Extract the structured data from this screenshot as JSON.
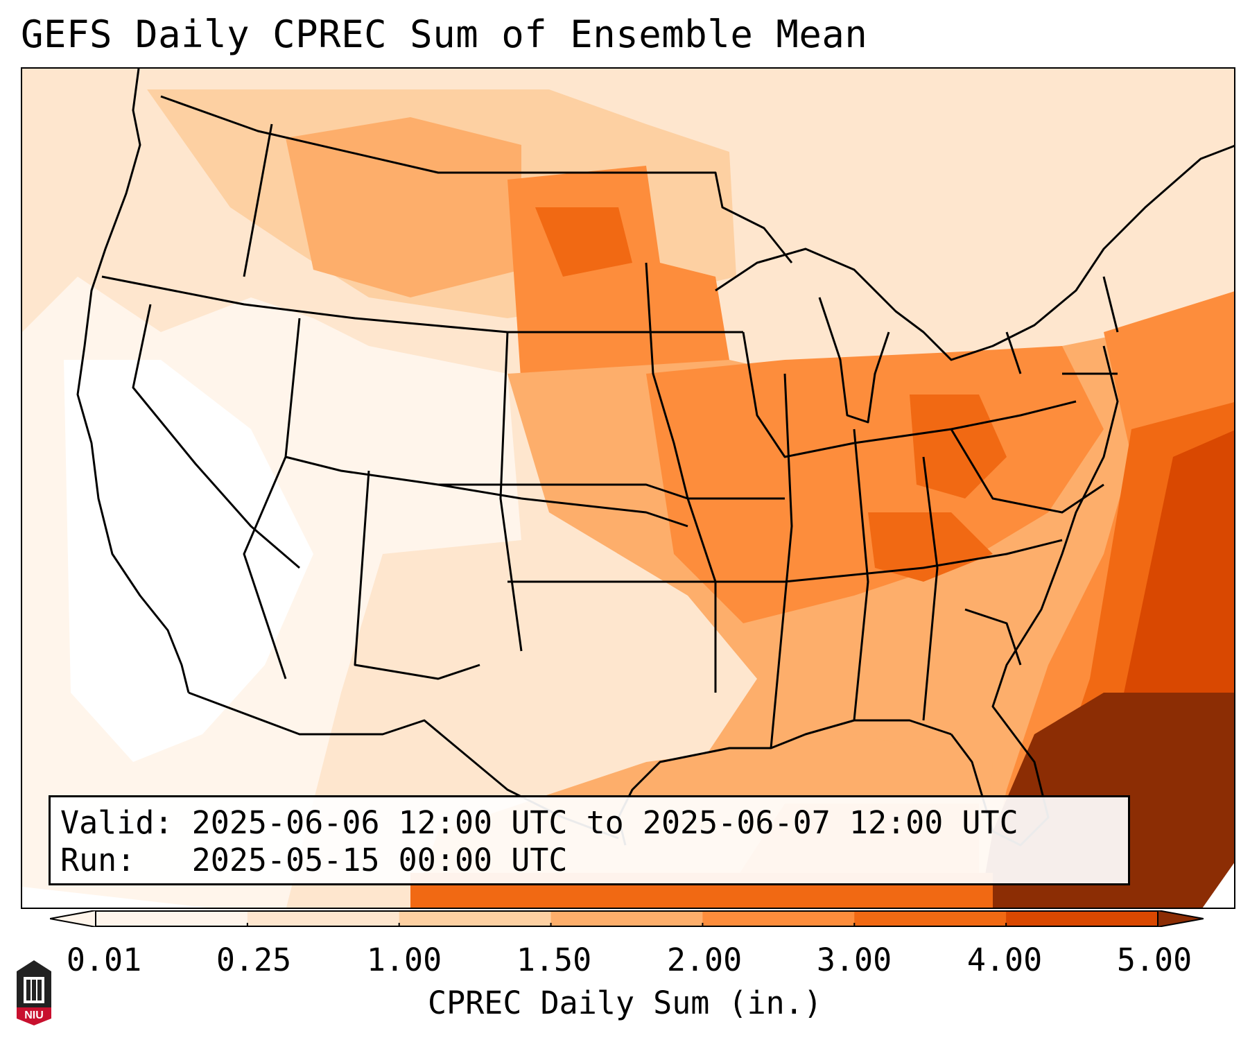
{
  "title": "GEFS Daily CPREC Sum of Ensemble Mean",
  "info": {
    "valid_line": "Valid: 2025-06-06 12:00 UTC to 2025-06-07 12:00 UTC",
    "run_line": "Run:   2025-05-15 00:00 UTC"
  },
  "colorbar": {
    "label": "CPREC Daily Sum (in.)",
    "ticks": [
      "0.01",
      "0.25",
      "1.00",
      "1.50",
      "2.00",
      "3.00",
      "4.00",
      "5.00"
    ],
    "colors": [
      "#fff5eb",
      "#fee6ce",
      "#fdd0a2",
      "#fdae6b",
      "#fd8d3c",
      "#f16913",
      "#d94801",
      "#8c2d04"
    ],
    "extend": "both"
  },
  "logo": {
    "text": "NIU",
    "color": "#c8102e"
  },
  "map": {
    "region": "Continental United States",
    "field": "Convective precipitation daily sum (in.)",
    "heavy_areas": [
      "Southeast US / Florida",
      "Western Atlantic",
      "Ohio Valley",
      "Northern Plains"
    ],
    "light_areas": [
      "Southwest US",
      "Great Basin",
      "Rocky Mountains"
    ]
  }
}
